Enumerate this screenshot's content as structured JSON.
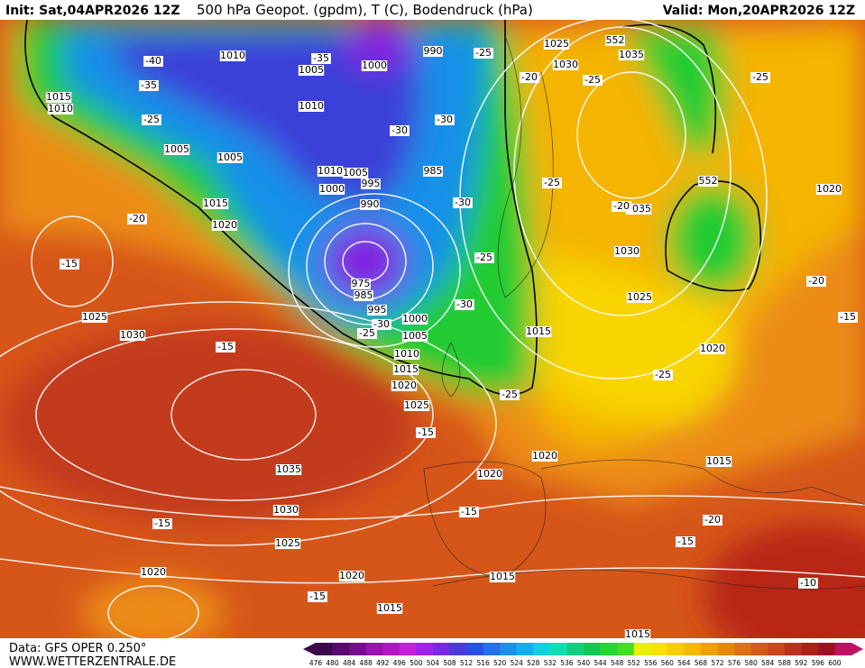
{
  "header": {
    "init": "Init: Sat,04APR2026 12Z",
    "title": "500 hPa Geopot. (gpdm), T (C), Bodendruck (hPa)",
    "valid": "Valid: Mon,20APR2026 12Z"
  },
  "footer": {
    "data": "Data: GFS OPER 0.250°",
    "site": "WWW.WETTERZENTRALE.DE"
  },
  "map_labels": [
    "1010",
    "1005",
    "1000",
    "990",
    "-35",
    "-40",
    "-35",
    "-30",
    "-30",
    "1010",
    "1015",
    "1010",
    "-25",
    "1005",
    "1005",
    "1010",
    "1005",
    "985",
    "1000",
    "995",
    "990",
    "-30",
    "1015",
    "1020",
    "-20",
    "-15",
    "975",
    "985",
    "995",
    "-30",
    "1000",
    "-25",
    "1005",
    "1010",
    "1015",
    "1020",
    "1025",
    "1025",
    "1030",
    "-15",
    "-15",
    "1035",
    "1030",
    "1025",
    "-15",
    "1020",
    "1020",
    "-15",
    "1015",
    "1015",
    "-15",
    "1020",
    "1020",
    "-25",
    "1015",
    "1025",
    "1030",
    "1035",
    "-25",
    "1025",
    "1030",
    "1035",
    "552",
    "-20",
    "-25",
    "-25",
    "-25",
    "-30",
    "1020",
    "-25",
    "1015",
    "-20",
    "-15",
    "-10",
    "1015",
    "1020",
    "-25",
    "-20",
    "-15",
    "552",
    "-20"
  ],
  "legend": {
    "values": [
      476,
      480,
      484,
      488,
      492,
      496,
      500,
      504,
      508,
      512,
      516,
      520,
      524,
      528,
      532,
      536,
      540,
      544,
      548,
      552,
      556,
      560,
      564,
      568,
      572,
      576,
      580,
      584,
      588,
      592,
      596,
      600
    ],
    "colors": [
      "#3b0a4a",
      "#5a0a6e",
      "#7a0a8e",
      "#9a10b0",
      "#b414c8",
      "#c81ee0",
      "#a020f0",
      "#7828e8",
      "#4a3ae0",
      "#2850e8",
      "#2070f0",
      "#1890f0",
      "#10b0f0",
      "#10d0e0",
      "#10e0b0",
      "#10d080",
      "#10c850",
      "#20d830",
      "#40e020",
      "#e8f000",
      "#f8e000",
      "#f8cc00",
      "#f8b800",
      "#f0a000",
      "#e88800",
      "#e07010",
      "#d85818",
      "#cc4418",
      "#c03018",
      "#b02018",
      "#a01020",
      "#c01060"
    ]
  }
}
